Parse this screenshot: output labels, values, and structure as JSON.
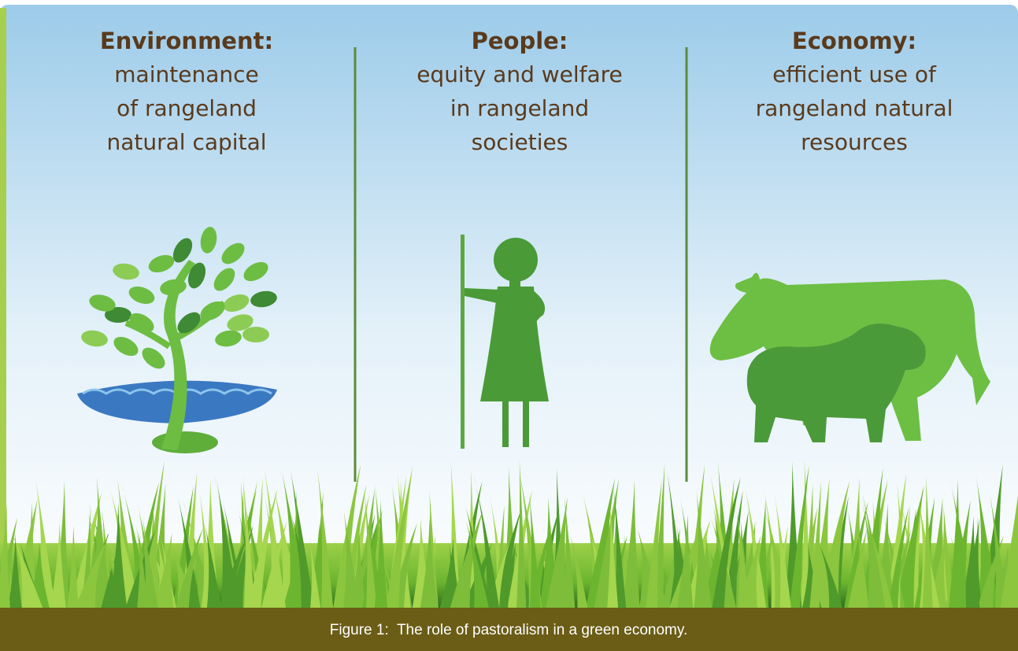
{
  "panels": [
    {
      "title": "Environment:",
      "lines": [
        "maintenance",
        "of rangeland",
        "natural capital"
      ]
    },
    {
      "title": "People:",
      "lines": [
        "equity and welfare",
        "in rangeland",
        "societies"
      ]
    },
    {
      "title": "Economy:",
      "lines": [
        "efficient use of",
        "rangeland natural",
        "resources"
      ]
    }
  ],
  "caption": "Figure 1:  The role of pastoralism in a green economy."
}
